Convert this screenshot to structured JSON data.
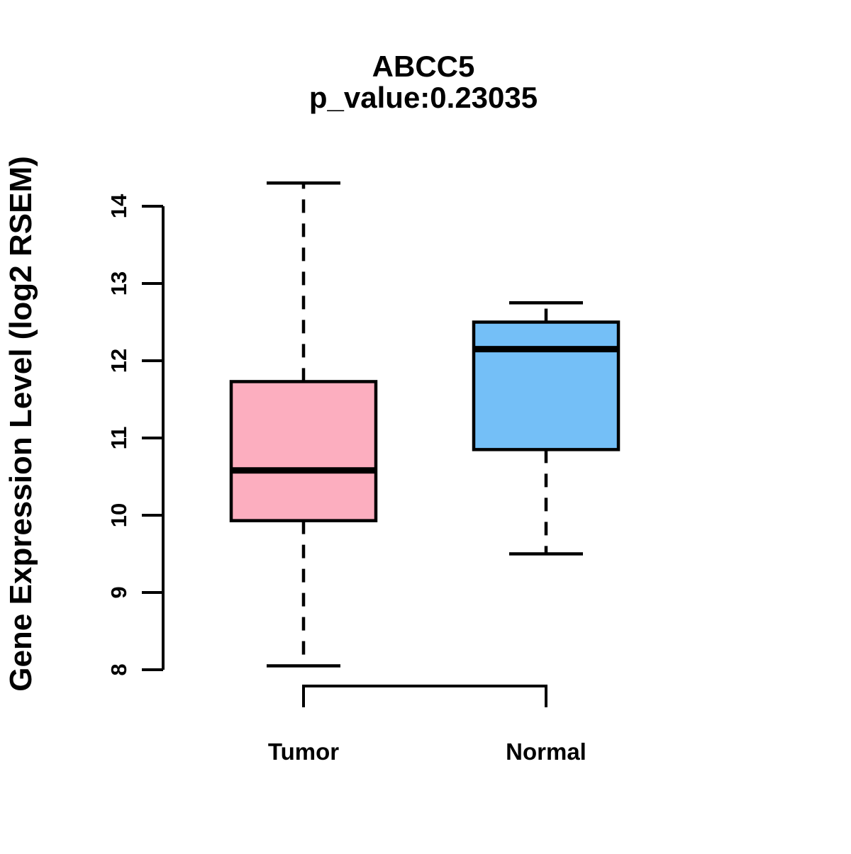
{
  "title": "ABCC5",
  "subtitle": "p_value:0.23035",
  "chart_data": {
    "type": "boxplot",
    "title": "ABCC5",
    "subtitle": "p_value:0.23035",
    "xlabel": "",
    "ylabel": "Gene Expression Level (log2 RSEM)",
    "ylim": [
      8,
      14.4
    ],
    "yticks": [
      8,
      9,
      10,
      11,
      12,
      13,
      14
    ],
    "grid": false,
    "legend": "none",
    "groups": [
      {
        "label": "Tumor",
        "fill_color": "#FCAEBF",
        "lower_whisker": 8.05,
        "q1": 9.93,
        "median": 10.58,
        "q3": 11.73,
        "upper_whisker": 14.3
      },
      {
        "label": "Normal",
        "fill_color": "#74BFF7",
        "lower_whisker": 9.5,
        "q1": 10.85,
        "median": 12.15,
        "q3": 12.5,
        "upper_whisker": 12.75
      }
    ],
    "line_color": "#000000",
    "background_color": "#FFFFFF"
  }
}
